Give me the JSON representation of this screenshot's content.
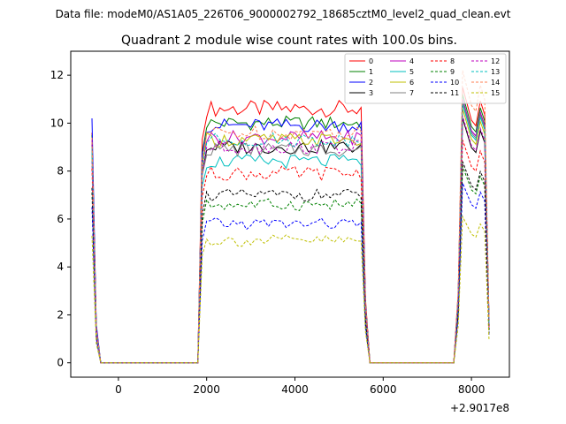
{
  "chart_data": {
    "type": "line",
    "suptitle": "Data file: modeM0/AS1A05_226T06_9000002792_18685cztM0_level2_quad_clean.evt",
    "title": "Quadrant 2 module wise count rates with 100.0s bins.",
    "xlabel": "",
    "ylabel": "",
    "x_offset_label": "+2.9017e8",
    "xlim": [
      -1080,
      8860
    ],
    "ylim": [
      -0.6,
      13.0
    ],
    "x_ticks": [
      0,
      2000,
      4000,
      6000,
      8000
    ],
    "y_ticks": [
      0,
      2,
      4,
      6,
      8,
      10,
      12
    ],
    "legend_position": "top-right",
    "segments": [
      {
        "name": "pre",
        "x_start": -600,
        "x_step": 100,
        "x_end": -400,
        "zero_end": 1800
      },
      {
        "name": "mid",
        "x_start": 1800,
        "x_step": 100,
        "x_end": 5500,
        "zero_start": 5700,
        "zero_end": 7600
      },
      {
        "name": "post",
        "x_start": 7600,
        "x_step": 100,
        "x_end": 8400
      }
    ],
    "series": [
      {
        "name": "0",
        "color": "#ff0000",
        "dash": "solid",
        "pre": [
          9.6,
          1.5,
          0
        ],
        "base": 10.6,
        "amp": 0.35,
        "post_peak": 11.5
      },
      {
        "name": "1",
        "color": "#008000",
        "dash": "solid",
        "pre": [
          9.5,
          1.4,
          0
        ],
        "base": 10.0,
        "amp": 0.3,
        "post_peak": 11.2
      },
      {
        "name": "2",
        "color": "#0000ff",
        "dash": "solid",
        "pre": [
          10.2,
          1.6,
          0
        ],
        "base": 9.9,
        "amp": 0.3,
        "post_peak": 11.0
      },
      {
        "name": "3",
        "color": "#000000",
        "dash": "solid",
        "pre": [
          9.2,
          1.4,
          0
        ],
        "base": 9.0,
        "amp": 0.3,
        "post_peak": 10.2
      },
      {
        "name": "4",
        "color": "#bf00bf",
        "dash": "solid",
        "pre": [
          9.3,
          1.4,
          0
        ],
        "base": 9.4,
        "amp": 0.3,
        "post_peak": 11.0
      },
      {
        "name": "5",
        "color": "#00bfbf",
        "dash": "solid",
        "pre": [
          9.0,
          1.3,
          0
        ],
        "base": 8.4,
        "amp": 0.3,
        "post_peak": 10.8
      },
      {
        "name": "6",
        "color": "#bfbf00",
        "dash": "solid",
        "pre": [
          8.7,
          1.3,
          0
        ],
        "base": 9.3,
        "amp": 0.3,
        "post_peak": 10.6
      },
      {
        "name": "7",
        "color": "#808080",
        "dash": "solid",
        "pre": [
          8.9,
          1.3,
          0
        ],
        "base": 8.9,
        "amp": 0.3,
        "post_peak": 10.9
      },
      {
        "name": "8",
        "color": "#ff0000",
        "dash": "dashed",
        "pre": [
          8.1,
          1.2,
          0
        ],
        "base": 7.9,
        "amp": 0.3,
        "post_peak": 9.3
      },
      {
        "name": "9",
        "color": "#008000",
        "dash": "dashed",
        "pre": [
          7.1,
          1.1,
          0
        ],
        "base": 6.6,
        "amp": 0.25,
        "post_peak": 8.2
      },
      {
        "name": "10",
        "color": "#0000ff",
        "dash": "dashed",
        "pre": [
          6.5,
          1.0,
          0
        ],
        "base": 5.8,
        "amp": 0.25,
        "post_peak": 7.5
      },
      {
        "name": "11",
        "color": "#000000",
        "dash": "dashed",
        "pre": [
          7.3,
          1.1,
          0
        ],
        "base": 7.0,
        "amp": 0.25,
        "post_peak": 8.4
      },
      {
        "name": "12",
        "color": "#bf00bf",
        "dash": "dashed",
        "pre": [
          8.4,
          1.2,
          0
        ],
        "base": 9.0,
        "amp": 0.3,
        "post_peak": 10.3
      },
      {
        "name": "13",
        "color": "#00bfbf",
        "dash": "dashed",
        "pre": [
          8.8,
          1.3,
          0
        ],
        "base": 9.3,
        "amp": 0.3,
        "post_peak": 10.8
      },
      {
        "name": "14",
        "color": "#ff7f50",
        "dash": "dashed",
        "pre": [
          9.4,
          1.4,
          0
        ],
        "base": 9.6,
        "amp": 0.3,
        "post_peak": 12.2
      },
      {
        "name": "15",
        "color": "#bfbf00",
        "dash": "dashed",
        "pre": [
          5.3,
          0.8,
          0
        ],
        "base": 5.1,
        "amp": 0.25,
        "post_peak": 6.1
      }
    ]
  }
}
